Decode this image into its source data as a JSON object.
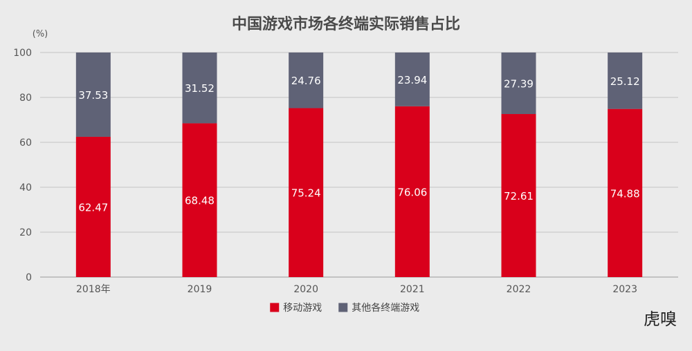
{
  "chart_data": {
    "type": "bar",
    "stacked": true,
    "title": "中国游戏市场各终端实际销售占比",
    "unit_label": "(%)",
    "categories": [
      "2018年",
      "2019",
      "2020",
      "2021",
      "2022",
      "2023"
    ],
    "series": [
      {
        "name": "移动游戏",
        "color": "#d9001b",
        "values": [
          62.47,
          68.48,
          75.24,
          76.06,
          72.61,
          74.88
        ]
      },
      {
        "name": "其他各终端游戏",
        "color": "#5f6276",
        "values": [
          37.53,
          31.52,
          24.76,
          23.94,
          27.39,
          25.12
        ]
      }
    ],
    "ylim": [
      0,
      100
    ],
    "yticks": [
      0,
      20,
      40,
      60,
      80,
      100
    ],
    "grid": true,
    "legend_position": "bottom-center"
  },
  "branding": {
    "logo_text": "虎嗅"
  }
}
